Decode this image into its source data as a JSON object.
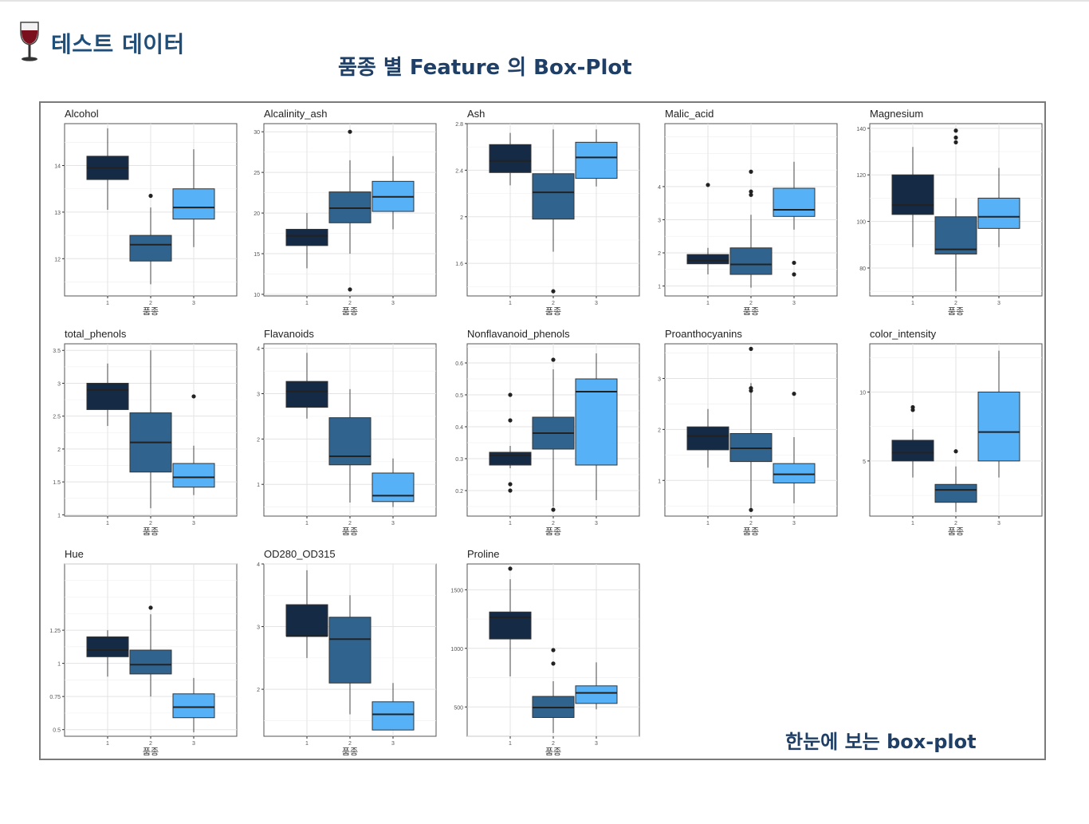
{
  "header": {
    "title": "테스트 데이터",
    "icon": "wine-glass-icon"
  },
  "main_title": "품종 별 Feature 의 Box-Plot",
  "caption": "한눈에 보는  box-plot",
  "colors": {
    "group1": "#152a45",
    "group2": "#30648f",
    "group3": "#56b1f7",
    "title": "#1f3f66"
  },
  "chart_data": [
    {
      "type": "box",
      "title": "Alcohol",
      "xlabel": "품종",
      "categories": [
        "1",
        "2",
        "3"
      ],
      "yticks": [
        12,
        13,
        14
      ],
      "ylim": [
        11.2,
        14.9
      ],
      "boxes": [
        {
          "whislo": 13.05,
          "q1": 13.7,
          "med": 13.95,
          "q3": 14.2,
          "whishi": 14.8,
          "outliers": []
        },
        {
          "whislo": 11.45,
          "q1": 11.95,
          "med": 12.3,
          "q3": 12.5,
          "whishi": 13.1,
          "outliers": [
            13.35
          ]
        },
        {
          "whislo": 12.25,
          "q1": 12.85,
          "med": 13.1,
          "q3": 13.5,
          "whishi": 14.35,
          "outliers": []
        }
      ]
    },
    {
      "type": "box",
      "title": "Alcalinity_ash",
      "xlabel": "품종",
      "categories": [
        "1",
        "2",
        "3"
      ],
      "yticks": [
        10,
        15,
        20,
        25,
        30
      ],
      "ylim": [
        9.8,
        31
      ],
      "boxes": [
        {
          "whislo": 13.2,
          "q1": 16.0,
          "med": 17.2,
          "q3": 18.0,
          "whishi": 20.0,
          "outliers": []
        },
        {
          "whislo": 15.0,
          "q1": 18.8,
          "med": 20.6,
          "q3": 22.6,
          "whishi": 26.5,
          "outliers": [
            30.0,
            10.6
          ]
        },
        {
          "whislo": 18.0,
          "q1": 20.2,
          "med": 22.0,
          "q3": 23.9,
          "whishi": 27.0,
          "outliers": []
        }
      ]
    },
    {
      "type": "box",
      "title": "Ash",
      "xlabel": "품종",
      "categories": [
        "1",
        "2",
        "3"
      ],
      "yticks": [
        1.6,
        2.0,
        2.4,
        2.8
      ],
      "ylim": [
        1.32,
        2.8
      ],
      "boxes": [
        {
          "whislo": 2.27,
          "q1": 2.38,
          "med": 2.48,
          "q3": 2.62,
          "whishi": 2.72,
          "outliers": []
        },
        {
          "whislo": 1.7,
          "q1": 1.98,
          "med": 2.21,
          "q3": 2.37,
          "whishi": 2.75,
          "outliers": [
            1.36
          ]
        },
        {
          "whislo": 2.26,
          "q1": 2.33,
          "med": 2.51,
          "q3": 2.64,
          "whishi": 2.75,
          "outliers": []
        }
      ]
    },
    {
      "type": "box",
      "title": "Malic_acid",
      "xlabel": "품종",
      "categories": [
        "1",
        "2",
        "3"
      ],
      "yticks": [
        1,
        2,
        3,
        4
      ],
      "ylim": [
        0.7,
        5.9
      ],
      "boxes": [
        {
          "whislo": 1.35,
          "q1": 1.67,
          "med": 1.77,
          "q3": 1.95,
          "whishi": 2.15,
          "outliers": [
            4.05
          ]
        },
        {
          "whislo": 0.95,
          "q1": 1.35,
          "med": 1.65,
          "q3": 2.15,
          "whishi": 3.15,
          "outliers": [
            4.45,
            3.85,
            3.75
          ]
        },
        {
          "whislo": 2.7,
          "q1": 3.1,
          "med": 3.3,
          "q3": 3.95,
          "whishi": 4.75,
          "outliers": [
            1.7,
            1.35
          ]
        }
      ]
    },
    {
      "type": "box",
      "title": "Magnesium",
      "xlabel": "품종",
      "categories": [
        "1",
        "2",
        "3"
      ],
      "yticks": [
        80,
        100,
        120,
        140
      ],
      "ylim": [
        68,
        142
      ],
      "boxes": [
        {
          "whislo": 89,
          "q1": 103,
          "med": 107,
          "q3": 120,
          "whishi": 132,
          "outliers": []
        },
        {
          "whislo": 70,
          "q1": 86,
          "med": 88,
          "q3": 102,
          "whishi": 110,
          "outliers": [
            139,
            136,
            134
          ]
        },
        {
          "whislo": 89,
          "q1": 97,
          "med": 102,
          "q3": 110,
          "whishi": 123,
          "outliers": []
        }
      ]
    },
    {
      "type": "box",
      "title": "total_phenols",
      "xlabel": "품종",
      "categories": [
        "1",
        "2",
        "3"
      ],
      "yticks": [
        1.0,
        1.5,
        2.0,
        2.5,
        3.0,
        3.5
      ],
      "ylim": [
        0.98,
        3.6
      ],
      "boxes": [
        {
          "whislo": 2.35,
          "q1": 2.6,
          "med": 2.9,
          "q3": 3.0,
          "whishi": 3.3,
          "outliers": []
        },
        {
          "whislo": 1.1,
          "q1": 1.65,
          "med": 2.1,
          "q3": 2.55,
          "whishi": 3.5,
          "outliers": []
        },
        {
          "whislo": 1.3,
          "q1": 1.42,
          "med": 1.57,
          "q3": 1.78,
          "whishi": 2.05,
          "outliers": [
            2.8
          ]
        }
      ]
    },
    {
      "type": "box",
      "title": "Flavanoids",
      "xlabel": "품종",
      "categories": [
        "1",
        "2",
        "3"
      ],
      "yticks": [
        1,
        2,
        3,
        4
      ],
      "ylim": [
        0.3,
        4.1
      ],
      "boxes": [
        {
          "whislo": 2.45,
          "q1": 2.7,
          "med": 3.05,
          "q3": 3.27,
          "whishi": 3.9,
          "outliers": []
        },
        {
          "whislo": 0.6,
          "q1": 1.43,
          "med": 1.62,
          "q3": 2.47,
          "whishi": 3.1,
          "outliers": []
        },
        {
          "whislo": 0.5,
          "q1": 0.62,
          "med": 0.75,
          "q3": 1.25,
          "whishi": 1.57,
          "outliers": []
        }
      ]
    },
    {
      "type": "box",
      "title": "Nonflavanoid_phenols",
      "xlabel": "품종",
      "categories": [
        "1",
        "2",
        "3"
      ],
      "yticks": [
        0.2,
        0.3,
        0.4,
        0.5,
        0.6
      ],
      "ylim": [
        0.12,
        0.66
      ],
      "boxes": [
        {
          "whislo": 0.27,
          "q1": 0.28,
          "med": 0.31,
          "q3": 0.32,
          "whishi": 0.34,
          "outliers": [
            0.5,
            0.42,
            0.22,
            0.2
          ]
        },
        {
          "whislo": 0.15,
          "q1": 0.33,
          "med": 0.38,
          "q3": 0.43,
          "whishi": 0.58,
          "outliers": [
            0.61,
            0.14
          ]
        },
        {
          "whislo": 0.17,
          "q1": 0.28,
          "med": 0.51,
          "q3": 0.55,
          "whishi": 0.63,
          "outliers": []
        }
      ]
    },
    {
      "type": "box",
      "title": "Proanthocyanins",
      "xlabel": "품종",
      "categories": [
        "1",
        "2",
        "3"
      ],
      "yticks": [
        1,
        2,
        3
      ],
      "ylim": [
        0.3,
        3.68
      ],
      "boxes": [
        {
          "whislo": 1.25,
          "q1": 1.6,
          "med": 1.87,
          "q3": 2.05,
          "whishi": 2.4,
          "outliers": []
        },
        {
          "whislo": 0.42,
          "q1": 1.37,
          "med": 1.63,
          "q3": 1.92,
          "whishi": 2.91,
          "outliers": [
            3.58,
            2.81,
            2.76,
            0.42
          ]
        },
        {
          "whislo": 0.55,
          "q1": 0.95,
          "med": 1.12,
          "q3": 1.33,
          "whishi": 1.85,
          "outliers": [
            2.7
          ]
        }
      ]
    },
    {
      "type": "box",
      "title": "color_intensity",
      "xlabel": "품종",
      "categories": [
        "1",
        "2",
        "3"
      ],
      "yticks": [
        5,
        10
      ],
      "ylim": [
        1.0,
        13.5
      ],
      "boxes": [
        {
          "whislo": 3.8,
          "q1": 5.0,
          "med": 5.6,
          "q3": 6.5,
          "whishi": 7.3,
          "outliers": [
            8.9,
            8.7
          ]
        },
        {
          "whislo": 1.3,
          "q1": 2.0,
          "med": 2.9,
          "q3": 3.3,
          "whishi": 4.6,
          "outliers": [
            5.7
          ]
        },
        {
          "whislo": 3.8,
          "q1": 5.0,
          "med": 7.1,
          "q3": 10.0,
          "whishi": 13.0,
          "outliers": []
        }
      ]
    },
    {
      "type": "box",
      "title": "Hue",
      "xlabel": "품종",
      "categories": [
        "1",
        "2",
        "3"
      ],
      "yticks": [
        0.5,
        0.75,
        1.0,
        1.25
      ],
      "ylim": [
        0.45,
        1.75
      ],
      "boxes": [
        {
          "whislo": 0.9,
          "q1": 1.05,
          "med": 1.1,
          "q3": 1.2,
          "whishi": 1.25,
          "outliers": []
        },
        {
          "whislo": 0.75,
          "q1": 0.92,
          "med": 0.99,
          "q3": 1.1,
          "whishi": 1.37,
          "outliers": [
            1.42
          ]
        },
        {
          "whislo": 0.48,
          "q1": 0.59,
          "med": 0.67,
          "q3": 0.77,
          "whishi": 0.89,
          "outliers": []
        }
      ]
    },
    {
      "type": "box",
      "title": "OD280_OD315",
      "xlabel": "품종",
      "categories": [
        "1",
        "2",
        "3"
      ],
      "yticks": [
        2,
        3,
        4
      ],
      "ylim": [
        1.25,
        4.0
      ],
      "boxes": [
        {
          "whislo": 2.5,
          "q1": 2.85,
          "med": 2.85,
          "q3": 3.35,
          "whishi": 3.9,
          "outliers": []
        },
        {
          "whislo": 1.6,
          "q1": 2.1,
          "med": 2.8,
          "q3": 3.15,
          "whishi": 3.5,
          "outliers": []
        },
        {
          "whislo": 1.35,
          "q1": 1.35,
          "med": 1.6,
          "q3": 1.8,
          "whishi": 2.1,
          "outliers": []
        }
      ]
    },
    {
      "type": "box",
      "title": "Proline",
      "xlabel": "품종",
      "categories": [
        "1",
        "2",
        "3"
      ],
      "yticks": [
        500,
        1000,
        1500
      ],
      "ylim": [
        250,
        1720
      ],
      "boxes": [
        {
          "whislo": 760,
          "q1": 1080,
          "med": 1265,
          "q3": 1310,
          "whishi": 1590,
          "outliers": [
            1680
          ]
        },
        {
          "whislo": 278,
          "q1": 410,
          "med": 495,
          "q3": 590,
          "whishi": 720,
          "outliers": [
            985,
            870
          ]
        },
        {
          "whislo": 480,
          "q1": 530,
          "med": 620,
          "q3": 680,
          "whishi": 880,
          "outliers": []
        }
      ]
    }
  ]
}
